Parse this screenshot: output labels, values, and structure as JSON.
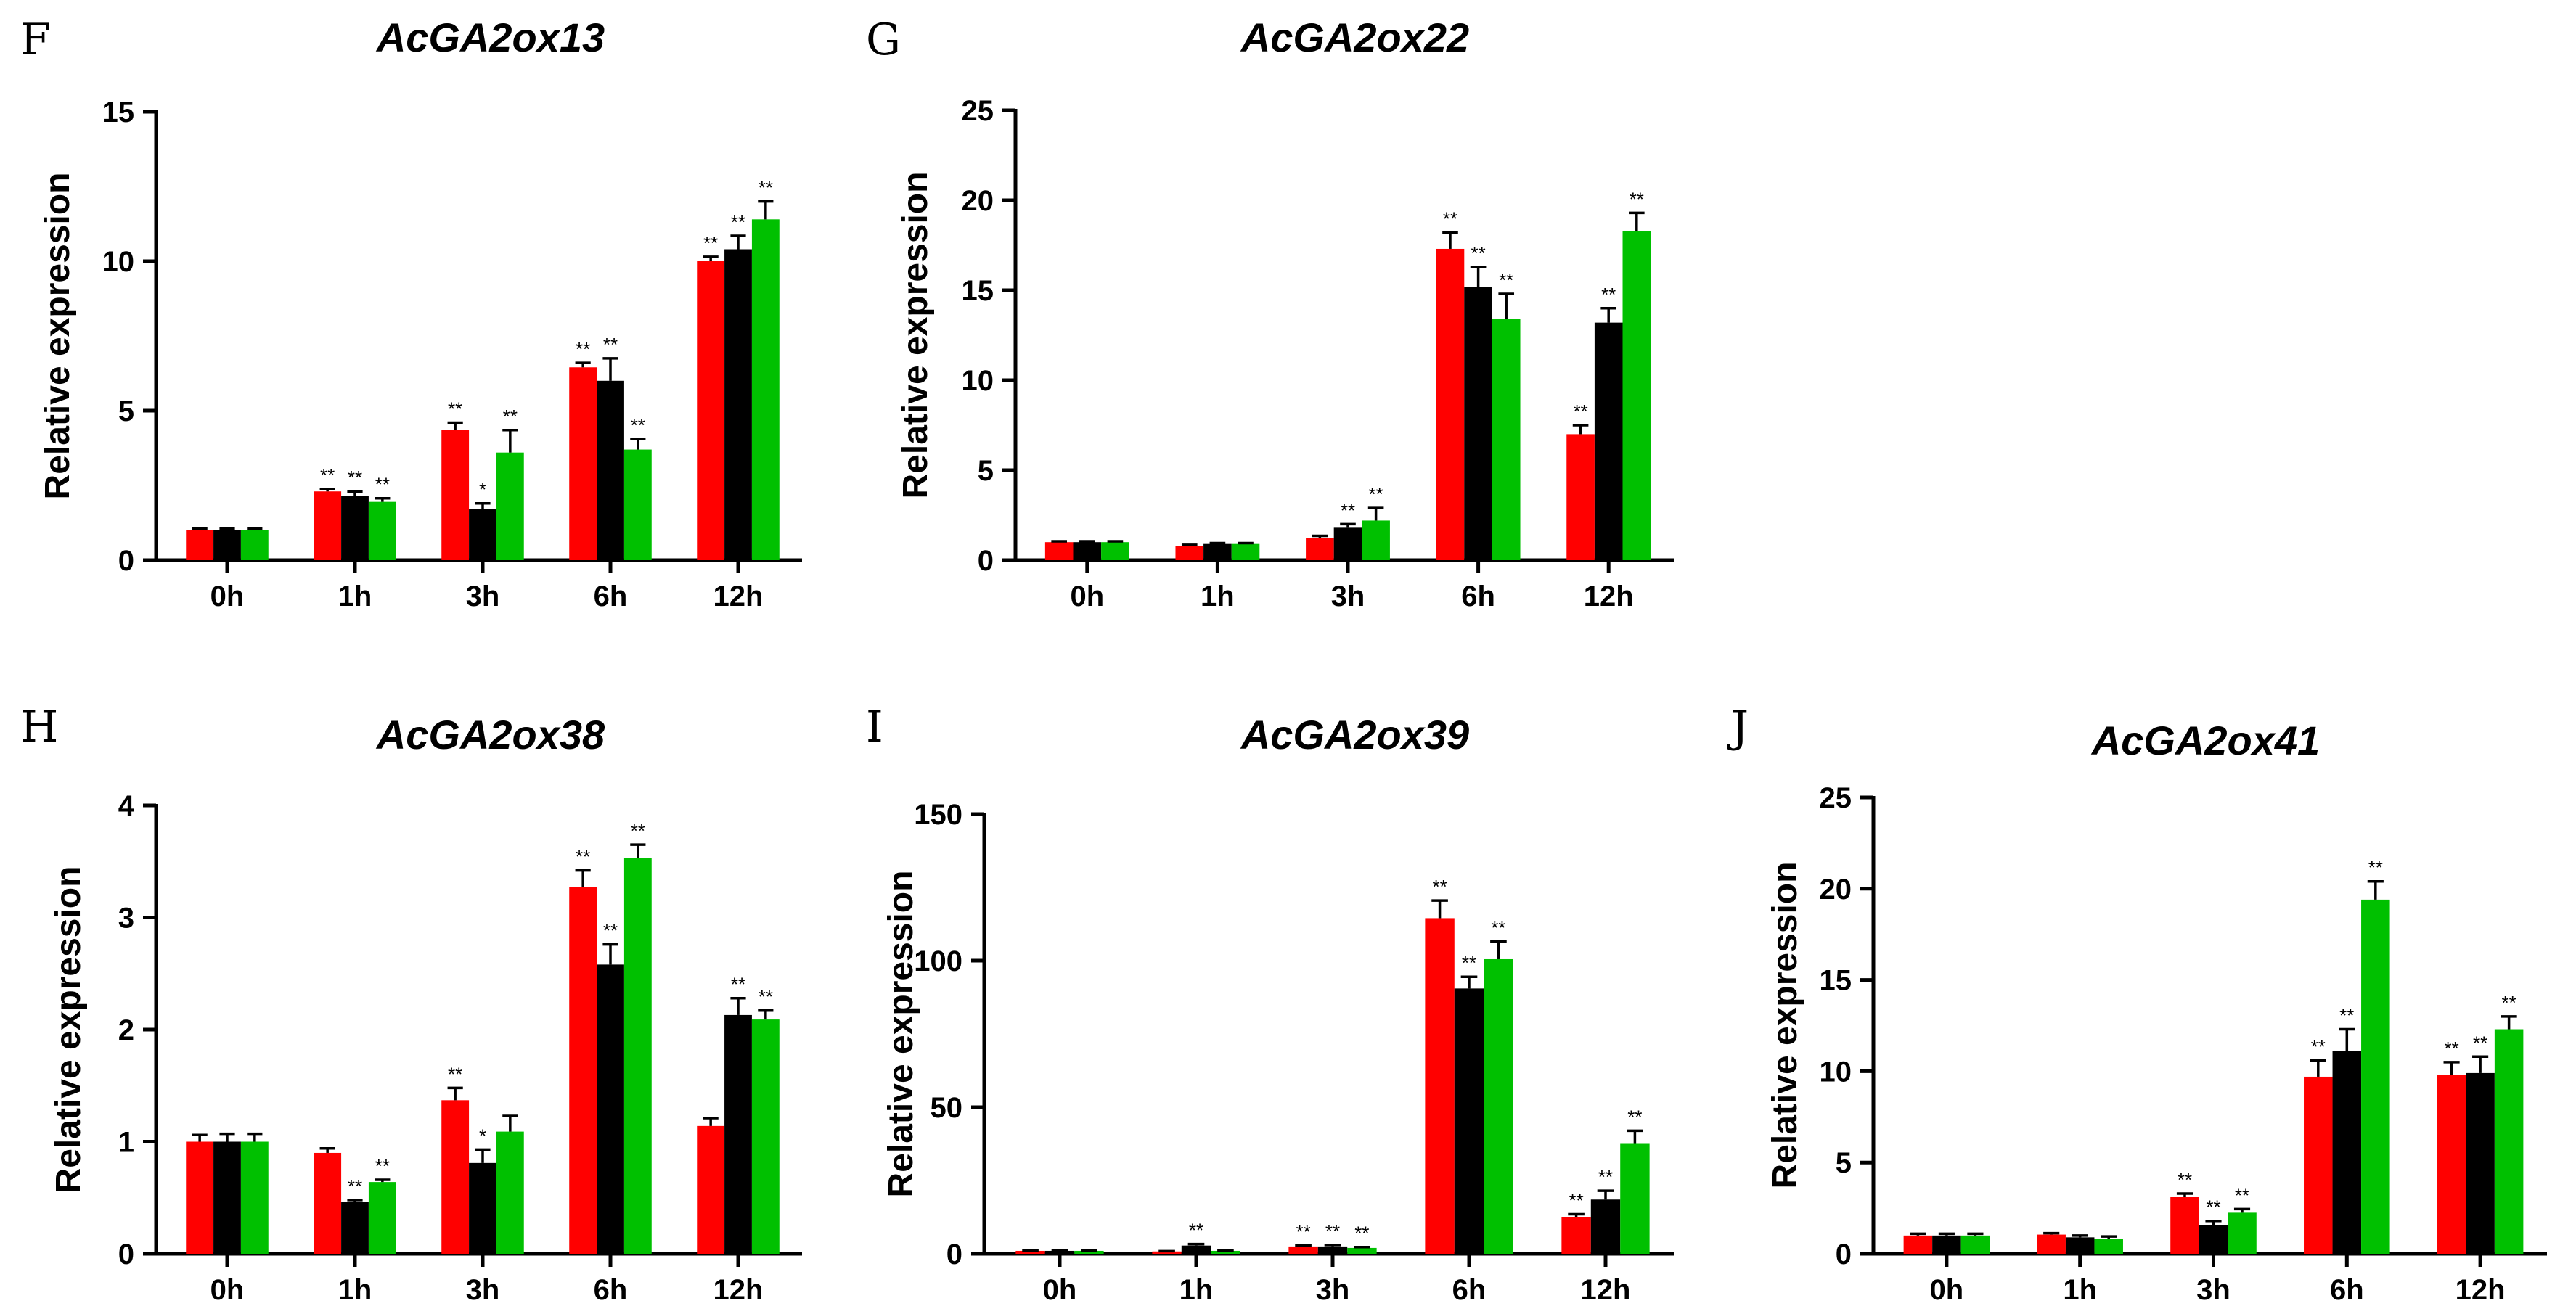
{
  "chart_data": [
    {
      "panel": "F",
      "title": "AcGA2ox13",
      "type": "bar",
      "ylabel": "Relative expression",
      "ylim": [
        0,
        15
      ],
      "yticks": [
        "0",
        "5",
        "10",
        "15"
      ],
      "categories": [
        "0h",
        "1h",
        "3h",
        "6h",
        "12h"
      ],
      "colors": [
        "#ff0000",
        "#000000",
        "#00c000"
      ],
      "series": [
        {
          "values": [
            1.0,
            2.3,
            4.35,
            6.45,
            10.0
          ],
          "errors": [
            0.05,
            0.08,
            0.25,
            0.15,
            0.15
          ],
          "sig": [
            "",
            "**",
            "**",
            "**",
            "**"
          ]
        },
        {
          "values": [
            1.0,
            2.15,
            1.7,
            6.0,
            10.4
          ],
          "errors": [
            0.05,
            0.15,
            0.2,
            0.75,
            0.45
          ],
          "sig": [
            "",
            "**",
            "*",
            "**",
            "**"
          ]
        },
        {
          "values": [
            1.0,
            1.95,
            3.6,
            3.7,
            11.4
          ],
          "errors": [
            0.05,
            0.12,
            0.75,
            0.35,
            0.6
          ],
          "sig": [
            "",
            "**",
            "**",
            "**",
            "**"
          ]
        }
      ]
    },
    {
      "panel": "G",
      "title": "AcGA2ox22",
      "type": "bar",
      "ylabel": "Relative expression",
      "ylim": [
        0,
        25
      ],
      "yticks": [
        "0",
        "5",
        "10",
        "15",
        "20",
        "25"
      ],
      "categories": [
        "0h",
        "1h",
        "3h",
        "6h",
        "12h"
      ],
      "colors": [
        "#ff0000",
        "#000000",
        "#00c000"
      ],
      "series": [
        {
          "values": [
            1.0,
            0.8,
            1.25,
            17.3,
            7.0
          ],
          "errors": [
            0.05,
            0.05,
            0.1,
            0.9,
            0.5
          ],
          "sig": [
            "",
            "",
            "",
            "**",
            "**"
          ]
        },
        {
          "values": [
            1.0,
            0.9,
            1.8,
            15.2,
            13.2
          ],
          "errors": [
            0.05,
            0.05,
            0.2,
            1.1,
            0.8
          ],
          "sig": [
            "",
            "",
            "**",
            "**",
            "**"
          ]
        },
        {
          "values": [
            1.0,
            0.9,
            2.2,
            13.4,
            18.3
          ],
          "errors": [
            0.05,
            0.05,
            0.7,
            1.4,
            1.0
          ],
          "sig": [
            "",
            "",
            "**",
            "**",
            "**"
          ]
        }
      ]
    },
    {
      "panel": "H",
      "title": "AcGA2ox38",
      "type": "bar",
      "ylabel": "Relative expression",
      "ylim": [
        0,
        4
      ],
      "yticks": [
        "0",
        "1",
        "2",
        "3",
        "4"
      ],
      "categories": [
        "0h",
        "1h",
        "3h",
        "6h",
        "12h"
      ],
      "colors": [
        "#ff0000",
        "#000000",
        "#00c000"
      ],
      "series": [
        {
          "values": [
            1.0,
            0.9,
            1.37,
            3.27,
            1.14
          ],
          "errors": [
            0.06,
            0.04,
            0.11,
            0.15,
            0.07
          ],
          "sig": [
            "",
            "",
            "**",
            "**",
            ""
          ]
        },
        {
          "values": [
            1.0,
            0.46,
            0.81,
            2.58,
            2.13
          ],
          "errors": [
            0.07,
            0.02,
            0.12,
            0.18,
            0.15
          ],
          "sig": [
            "",
            "**",
            "*",
            "**",
            "**"
          ]
        },
        {
          "values": [
            1.0,
            0.64,
            1.09,
            3.53,
            2.09
          ],
          "errors": [
            0.07,
            0.02,
            0.14,
            0.12,
            0.08
          ],
          "sig": [
            "",
            "**",
            "",
            "**",
            "**"
          ]
        }
      ]
    },
    {
      "panel": "I",
      "title": "AcGA2ox39",
      "type": "bar",
      "ylabel": "Relative expression",
      "ylim": [
        0,
        150
      ],
      "yticks": [
        "0",
        "50",
        "100",
        "150"
      ],
      "categories": [
        "0h",
        "1h",
        "3h",
        "6h",
        "12h"
      ],
      "colors": [
        "#ff0000",
        "#000000",
        "#00c000"
      ],
      "series": [
        {
          "values": [
            1.0,
            0.8,
            2.5,
            114.5,
            12.5
          ],
          "errors": [
            0.1,
            0.1,
            0.3,
            6.0,
            1.0
          ],
          "sig": [
            "",
            "",
            "**",
            "**",
            "**"
          ]
        },
        {
          "values": [
            1.0,
            2.8,
            2.5,
            90.5,
            18.5
          ],
          "errors": [
            0.1,
            0.5,
            0.5,
            4.0,
            3.0
          ],
          "sig": [
            "",
            "**",
            "**",
            "**",
            "**"
          ]
        },
        {
          "values": [
            1.0,
            1.0,
            2.0,
            100.5,
            37.5
          ],
          "errors": [
            0.1,
            0.1,
            0.3,
            6.0,
            4.5
          ],
          "sig": [
            "",
            "",
            "**",
            "**",
            "**"
          ]
        }
      ]
    },
    {
      "panel": "J",
      "title": "AcGA2ox41",
      "type": "bar",
      "ylabel": "Relative expression",
      "ylim": [
        0,
        25
      ],
      "yticks": [
        "0",
        "5",
        "10",
        "15",
        "20",
        "25"
      ],
      "categories": [
        "0h",
        "1h",
        "3h",
        "6h",
        "12h"
      ],
      "colors": [
        "#ff0000",
        "#000000",
        "#00c000"
      ],
      "series": [
        {
          "values": [
            1.0,
            1.05,
            3.1,
            9.7,
            9.8
          ],
          "errors": [
            0.1,
            0.08,
            0.2,
            0.9,
            0.7
          ],
          "sig": [
            "",
            "",
            "**",
            "**",
            "**"
          ]
        },
        {
          "values": [
            1.0,
            0.9,
            1.55,
            11.1,
            9.9
          ],
          "errors": [
            0.1,
            0.1,
            0.25,
            1.2,
            0.9
          ],
          "sig": [
            "",
            "",
            "**",
            "**",
            "**"
          ]
        },
        {
          "values": [
            1.0,
            0.8,
            2.25,
            19.4,
            12.3
          ],
          "errors": [
            0.1,
            0.15,
            0.2,
            1.0,
            0.7
          ],
          "sig": [
            "",
            "",
            "**",
            "**",
            "**"
          ]
        }
      ]
    }
  ]
}
